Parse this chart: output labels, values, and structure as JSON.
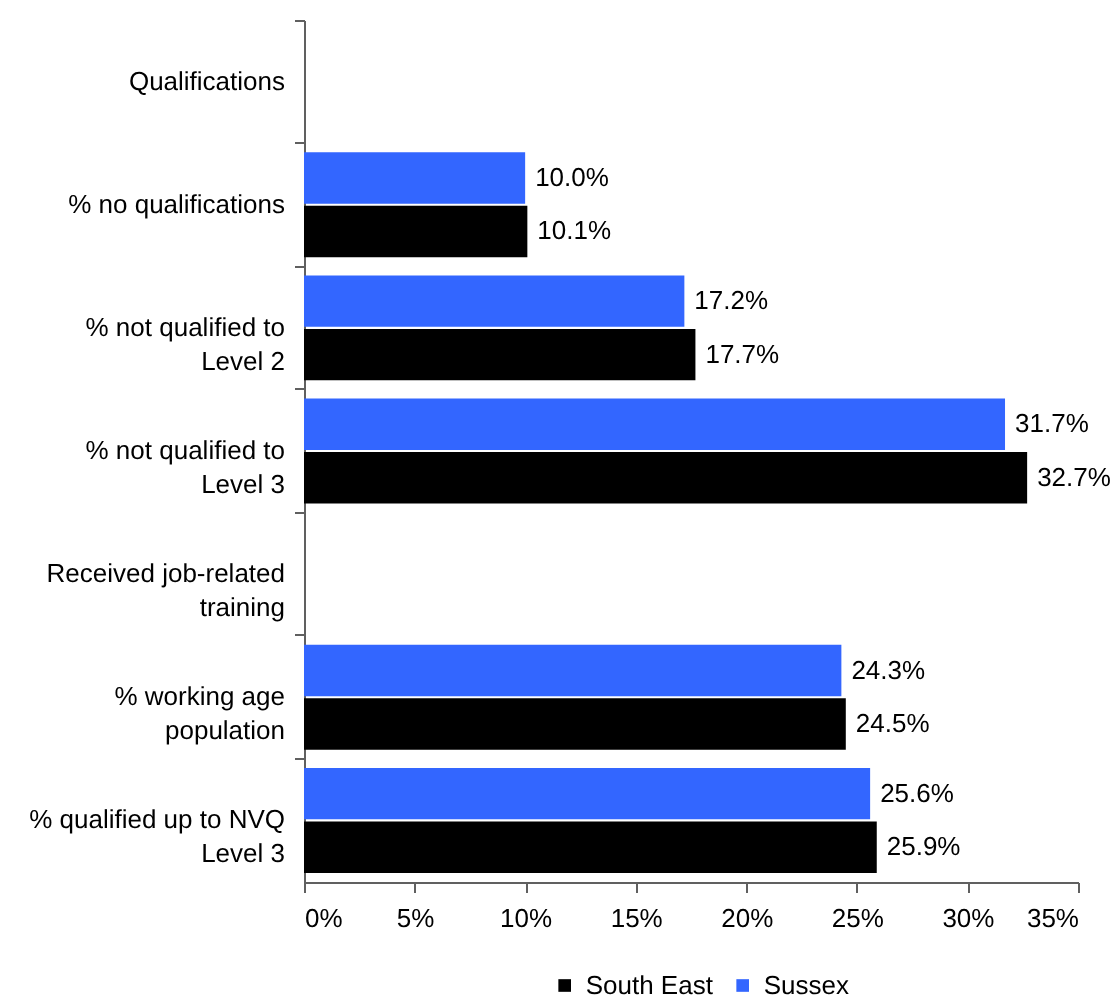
{
  "chart_data": {
    "type": "bar",
    "orientation": "horizontal",
    "categories": [
      "Qualifications",
      "% no qualifications",
      "% not qualified to Level 2",
      "% not qualified to Level 3",
      "Received job-related training",
      "% working age population",
      "% qualified up to NVQ Level 3"
    ],
    "series": [
      {
        "name": "South East",
        "color": "#000000",
        "values": [
          null,
          10.1,
          17.7,
          32.7,
          null,
          24.5,
          25.9
        ],
        "value_labels": [
          null,
          "10.1%",
          "17.7%",
          "32.7%",
          null,
          "24.5%",
          "25.9%"
        ]
      },
      {
        "name": "Sussex",
        "color": "#3366ff",
        "values": [
          null,
          10.0,
          17.2,
          31.7,
          null,
          24.3,
          25.6
        ],
        "value_labels": [
          null,
          "10.0%",
          "17.2%",
          "31.7%",
          null,
          "24.3%",
          "25.6%"
        ]
      }
    ],
    "xlim": [
      0,
      35
    ],
    "xticks": [
      {
        "value": 0,
        "label": "0%"
      },
      {
        "value": 5,
        "label": "5%"
      },
      {
        "value": 10,
        "label": "10%"
      },
      {
        "value": 15,
        "label": "15%"
      },
      {
        "value": 20,
        "label": "20%"
      },
      {
        "value": 25,
        "label": "25%"
      },
      {
        "value": 30,
        "label": "30%"
      },
      {
        "value": 35,
        "label": "35%"
      }
    ],
    "legend": "bottom"
  }
}
